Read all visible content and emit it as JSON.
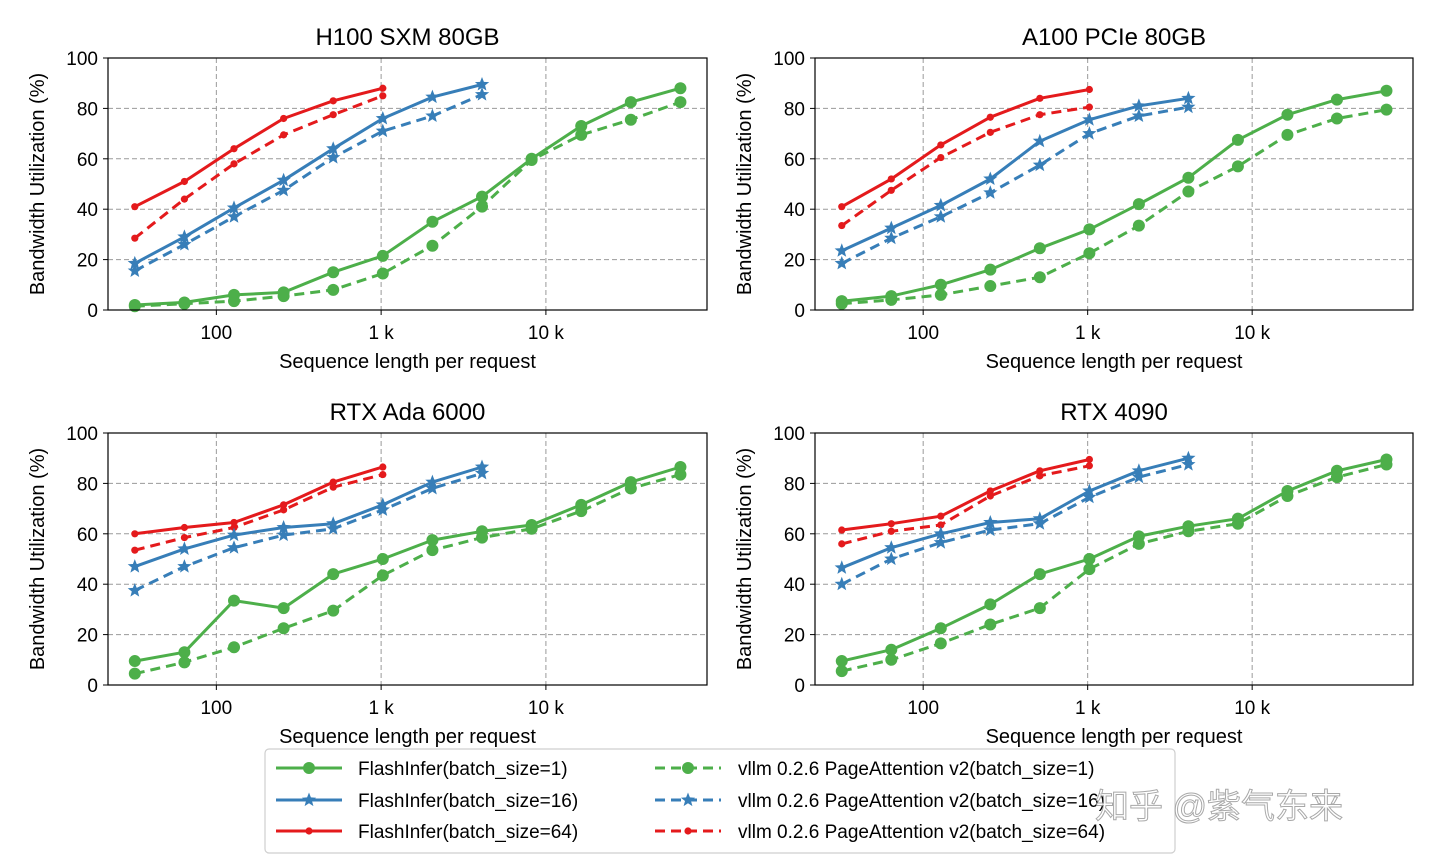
{
  "chart_data": [
    {
      "type": "line",
      "title": "H100 SXM 80GB",
      "xlabel": "Sequence length per request",
      "ylabel": "Bandwidth Utilization (%)",
      "xscale": "log",
      "xticks": [
        {
          "value": 100,
          "label": "100"
        },
        {
          "value": 1000,
          "label": "1 k"
        },
        {
          "value": 10000,
          "label": "10 k"
        }
      ],
      "yticks": [
        0,
        20,
        40,
        60,
        80,
        100
      ],
      "ylim": [
        0,
        100
      ],
      "grid": true,
      "series": [
        {
          "key": "fi1",
          "x": [
            32,
            64,
            128,
            256,
            512,
            1024,
            2048,
            4096,
            8192,
            16384,
            32768,
            65536
          ],
          "y": [
            2,
            3,
            6,
            7,
            15,
            21.5,
            35,
            45,
            60,
            73,
            82.5,
            88
          ]
        },
        {
          "key": "vl1",
          "x": [
            32,
            64,
            128,
            256,
            512,
            1024,
            2048,
            4096,
            8192,
            16384,
            32768,
            65536
          ],
          "y": [
            1.5,
            2.5,
            3.5,
            5.5,
            8,
            14.5,
            25.5,
            41,
            59.5,
            69.5,
            75.5,
            82.5
          ]
        },
        {
          "key": "fi16",
          "x": [
            32,
            64,
            128,
            256,
            512,
            1024,
            2048,
            4096
          ],
          "y": [
            18.5,
            29,
            40.5,
            51.5,
            64,
            76,
            84.5,
            89.5
          ]
        },
        {
          "key": "vl16",
          "x": [
            32,
            64,
            128,
            256,
            512,
            1024,
            2048,
            4096
          ],
          "y": [
            15.5,
            26,
            37,
            47.5,
            60.5,
            71,
            77,
            85.5
          ]
        },
        {
          "key": "fi64",
          "x": [
            32,
            64,
            128,
            256,
            512,
            1024
          ],
          "y": [
            41,
            51,
            64,
            76,
            83,
            88
          ]
        },
        {
          "key": "vl64",
          "x": [
            32,
            64,
            128,
            256,
            512,
            1024
          ],
          "y": [
            28.5,
            44,
            58,
            69.5,
            77.5,
            85
          ]
        }
      ]
    },
    {
      "type": "line",
      "title": "A100 PCIe 80GB",
      "xlabel": "Sequence length per request",
      "ylabel": "Bandwidth Utilization (%)",
      "xscale": "log",
      "xticks": [
        {
          "value": 100,
          "label": "100"
        },
        {
          "value": 1000,
          "label": "1 k"
        },
        {
          "value": 10000,
          "label": "10 k"
        }
      ],
      "yticks": [
        0,
        20,
        40,
        60,
        80,
        100
      ],
      "ylim": [
        0,
        100
      ],
      "grid": true,
      "series": [
        {
          "key": "fi1",
          "x": [
            32,
            64,
            128,
            256,
            512,
            1024,
            2048,
            4096,
            8192,
            16384,
            32768,
            65536
          ],
          "y": [
            3.5,
            5.5,
            10,
            16,
            24.5,
            32,
            42,
            52.5,
            67.5,
            77.5,
            83.5,
            87
          ]
        },
        {
          "key": "vl1",
          "x": [
            32,
            64,
            128,
            256,
            512,
            1024,
            2048,
            4096,
            8192,
            16384,
            32768,
            65536
          ],
          "y": [
            2.5,
            4,
            6,
            9.5,
            13,
            22.5,
            33.5,
            47,
            57,
            69.5,
            76,
            79.5
          ]
        },
        {
          "key": "fi16",
          "x": [
            32,
            64,
            128,
            256,
            512,
            1024,
            2048,
            4096
          ],
          "y": [
            23.5,
            32.5,
            41.5,
            52,
            67,
            75.5,
            81,
            84
          ]
        },
        {
          "key": "vl16",
          "x": [
            32,
            64,
            128,
            256,
            512,
            1024,
            2048,
            4096
          ],
          "y": [
            18.5,
            28.5,
            37,
            46.5,
            57.5,
            70,
            77,
            80.5
          ]
        },
        {
          "key": "fi64",
          "x": [
            32,
            64,
            128,
            256,
            512,
            1024
          ],
          "y": [
            41,
            52,
            65.5,
            76.5,
            84,
            87.5
          ]
        },
        {
          "key": "vl64",
          "x": [
            32,
            64,
            128,
            256,
            512,
            1024
          ],
          "y": [
            33.5,
            47.5,
            60.5,
            70.5,
            77.5,
            80.5
          ]
        }
      ]
    },
    {
      "type": "line",
      "title": "RTX Ada 6000",
      "xlabel": "Sequence length per request",
      "ylabel": "Bandwidth Utilization (%)",
      "xscale": "log",
      "xticks": [
        {
          "value": 100,
          "label": "100"
        },
        {
          "value": 1000,
          "label": "1 k"
        },
        {
          "value": 10000,
          "label": "10 k"
        }
      ],
      "yticks": [
        0,
        20,
        40,
        60,
        80,
        100
      ],
      "ylim": [
        0,
        100
      ],
      "grid": true,
      "series": [
        {
          "key": "fi1",
          "x": [
            32,
            64,
            128,
            256,
            512,
            1024,
            2048,
            4096,
            8192,
            16384,
            32768,
            65536
          ],
          "y": [
            9.5,
            13,
            33.5,
            30.5,
            44,
            50,
            57.5,
            61,
            63.5,
            71.5,
            80.5,
            86.5
          ]
        },
        {
          "key": "vl1",
          "x": [
            32,
            64,
            128,
            256,
            512,
            1024,
            2048,
            4096,
            8192,
            16384,
            32768,
            65536
          ],
          "y": [
            4.5,
            9,
            15,
            22.5,
            29.5,
            43.5,
            53.5,
            58.5,
            62,
            69,
            78,
            83.5
          ]
        },
        {
          "key": "fi16",
          "x": [
            32,
            64,
            128,
            256,
            512,
            1024,
            2048,
            4096
          ],
          "y": [
            47,
            54,
            59.5,
            62.5,
            64,
            71.5,
            80.5,
            86.5
          ]
        },
        {
          "key": "vl16",
          "x": [
            32,
            64,
            128,
            256,
            512,
            1024,
            2048,
            4096
          ],
          "y": [
            37.5,
            47,
            54.5,
            59.5,
            62,
            69.5,
            78,
            84
          ]
        },
        {
          "key": "fi64",
          "x": [
            32,
            64,
            128,
            256,
            512,
            1024
          ],
          "y": [
            60,
            62.5,
            64.5,
            71.5,
            80.5,
            86.5
          ]
        },
        {
          "key": "vl64",
          "x": [
            32,
            64,
            128,
            256,
            512,
            1024
          ],
          "y": [
            53.5,
            58.5,
            62.5,
            69.5,
            78.5,
            83.5
          ]
        }
      ]
    },
    {
      "type": "line",
      "title": "RTX 4090",
      "xlabel": "Sequence length per request",
      "ylabel": "Bandwidth Utilization (%)",
      "xscale": "log",
      "xticks": [
        {
          "value": 100,
          "label": "100"
        },
        {
          "value": 1000,
          "label": "1 k"
        },
        {
          "value": 10000,
          "label": "10 k"
        }
      ],
      "yticks": [
        0,
        20,
        40,
        60,
        80,
        100
      ],
      "ylim": [
        0,
        100
      ],
      "grid": true,
      "series": [
        {
          "key": "fi1",
          "x": [
            32,
            64,
            128,
            256,
            512,
            1024,
            2048,
            4096,
            8192,
            16384,
            32768,
            65536
          ],
          "y": [
            9.5,
            14,
            22.5,
            32,
            44,
            50,
            59,
            63,
            66,
            77,
            85,
            89.5
          ]
        },
        {
          "key": "vl1",
          "x": [
            32,
            64,
            128,
            256,
            512,
            1024,
            2048,
            4096,
            8192,
            16384,
            32768,
            65536
          ],
          "y": [
            5.5,
            10,
            16.5,
            24,
            30.5,
            46,
            56,
            61,
            64,
            75,
            82.5,
            87.5
          ]
        },
        {
          "key": "fi16",
          "x": [
            32,
            64,
            128,
            256,
            512,
            1024,
            2048,
            4096
          ],
          "y": [
            46.5,
            54.5,
            60,
            64.5,
            66,
            77,
            85,
            90
          ]
        },
        {
          "key": "vl16",
          "x": [
            32,
            64,
            128,
            256,
            512,
            1024,
            2048,
            4096
          ],
          "y": [
            40,
            50,
            56.5,
            61.5,
            64,
            74.5,
            82.5,
            87.5
          ]
        },
        {
          "key": "fi64",
          "x": [
            32,
            64,
            128,
            256,
            512,
            1024
          ],
          "y": [
            61.5,
            64,
            67,
            77,
            85,
            89.5
          ]
        },
        {
          "key": "vl64",
          "x": [
            32,
            64,
            128,
            256,
            512,
            1024
          ],
          "y": [
            56,
            61,
            63.5,
            75,
            83,
            87
          ]
        }
      ]
    }
  ],
  "legend": {
    "placement": "bottom-center",
    "entries": [
      {
        "key": "fi1",
        "label": "FlashInfer(batch_size=1)",
        "color": "#4daf4a",
        "linestyle": "solid",
        "marker": "circle"
      },
      {
        "key": "fi16",
        "label": "FlashInfer(batch_size=16)",
        "color": "#377eb8",
        "linestyle": "solid",
        "marker": "star"
      },
      {
        "key": "fi64",
        "label": "FlashInfer(batch_size=64)",
        "color": "#e41a1c",
        "linestyle": "solid",
        "marker": "dot"
      },
      {
        "key": "vl1",
        "label": "vllm 0.2.6 PageAttention v2(batch_size=1)",
        "color": "#4daf4a",
        "linestyle": "dashed",
        "marker": "circle"
      },
      {
        "key": "vl16",
        "label": "vllm 0.2.6 PageAttention v2(batch_size=16)",
        "color": "#377eb8",
        "linestyle": "dashed",
        "marker": "star"
      },
      {
        "key": "vl64",
        "label": "vllm 0.2.6 PageAttention v2(batch_size=64)",
        "color": "#e41a1c",
        "linestyle": "dashed",
        "marker": "dot"
      }
    ]
  },
  "watermark": "知乎 @紫气东来"
}
